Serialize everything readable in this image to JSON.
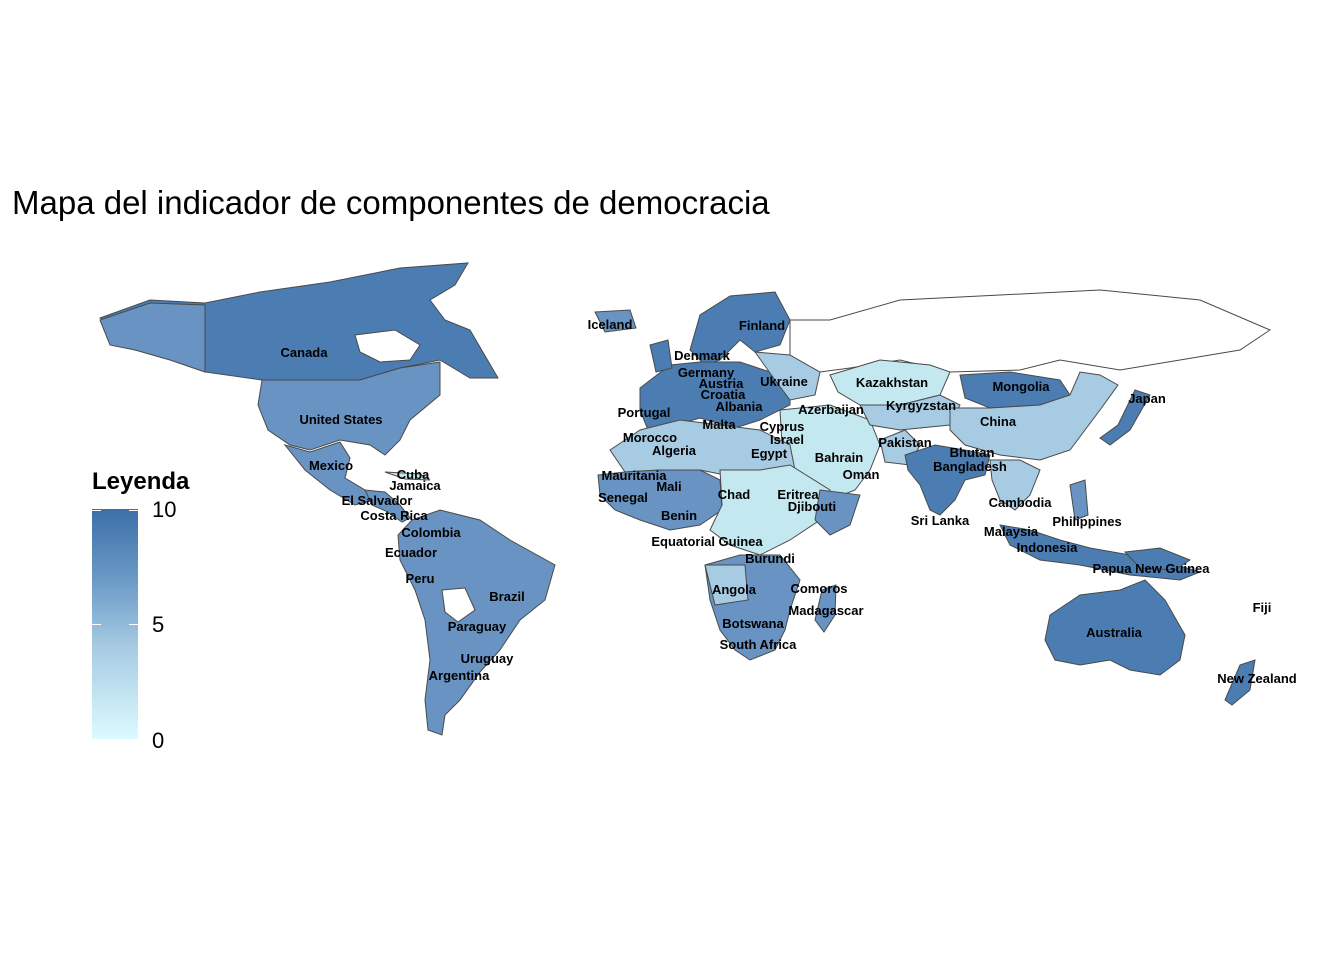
{
  "title": "Mapa del indicador de componentes de democracia",
  "legend": {
    "title": "Leyenda",
    "ticks": [
      "10",
      "5",
      "0"
    ],
    "scale": {
      "min": 0,
      "max": 10,
      "low_color": "#dcfaff",
      "high_color": "#3b6fa6"
    }
  },
  "countries": [
    {
      "name": "Canada",
      "value": 9
    },
    {
      "name": "United States",
      "value": 8
    },
    {
      "name": "Mexico",
      "value": 7
    },
    {
      "name": "Cuba",
      "value": 1
    },
    {
      "name": "Jamaica",
      "value": 8
    },
    {
      "name": "El Salvador",
      "value": 6
    },
    {
      "name": "Costa Rica",
      "value": 9
    },
    {
      "name": "Colombia",
      "value": 7
    },
    {
      "name": "Ecuador",
      "value": 7
    },
    {
      "name": "Peru",
      "value": 7
    },
    {
      "name": "Brazil",
      "value": 7
    },
    {
      "name": "Paraguay",
      "value": 7
    },
    {
      "name": "Uruguay",
      "value": 9
    },
    {
      "name": "Argentina",
      "value": 8
    },
    {
      "name": "Iceland",
      "value": 9
    },
    {
      "name": "Finland",
      "value": 9
    },
    {
      "name": "Denmark",
      "value": 9
    },
    {
      "name": "Germany",
      "value": 9
    },
    {
      "name": "Austria",
      "value": 9
    },
    {
      "name": "Croatia",
      "value": 8
    },
    {
      "name": "Albania",
      "value": 7
    },
    {
      "name": "Ukraine",
      "value": 5
    },
    {
      "name": "Portugal",
      "value": 9
    },
    {
      "name": "Malta",
      "value": 9
    },
    {
      "name": "Azerbaijan",
      "value": 2
    },
    {
      "name": "Cyprus",
      "value": 9
    },
    {
      "name": "Israel",
      "value": 8
    },
    {
      "name": "Morocco",
      "value": 4
    },
    {
      "name": "Algeria",
      "value": 4
    },
    {
      "name": "Egypt",
      "value": 2
    },
    {
      "name": "Bahrain",
      "value": 2
    },
    {
      "name": "Oman",
      "value": 3
    },
    {
      "name": "Mauritania",
      "value": 5
    },
    {
      "name": "Mali",
      "value": 6
    },
    {
      "name": "Senegal",
      "value": 7
    },
    {
      "name": "Chad",
      "value": 2
    },
    {
      "name": "Eritrea",
      "value": 1
    },
    {
      "name": "Djibouti",
      "value": 3
    },
    {
      "name": "Benin",
      "value": 7
    },
    {
      "name": "Equatorial Guinea",
      "value": 2
    },
    {
      "name": "Burundi",
      "value": 3
    },
    {
      "name": "Angola",
      "value": 4
    },
    {
      "name": "Comoros",
      "value": 5
    },
    {
      "name": "Madagascar",
      "value": 6
    },
    {
      "name": "Botswana",
      "value": 8
    },
    {
      "name": "South Africa",
      "value": 8
    },
    {
      "name": "Kazakhstan",
      "value": 3
    },
    {
      "name": "Kyrgyzstan",
      "value": 5
    },
    {
      "name": "Mongolia",
      "value": 8
    },
    {
      "name": "China",
      "value": 4
    },
    {
      "name": "Japan",
      "value": 9
    },
    {
      "name": "Pakistan",
      "value": 5
    },
    {
      "name": "Bhutan",
      "value": 7
    },
    {
      "name": "Bangladesh",
      "value": 5
    },
    {
      "name": "Sri Lanka",
      "value": 7
    },
    {
      "name": "Cambodia",
      "value": 3
    },
    {
      "name": "Malaysia",
      "value": 7
    },
    {
      "name": "Philippines",
      "value": 6
    },
    {
      "name": "Indonesia",
      "value": 7
    },
    {
      "name": "Papua New Guinea",
      "value": 7
    },
    {
      "name": "Australia",
      "value": 9
    },
    {
      "name": "Fiji",
      "value": 6
    },
    {
      "name": "New Zealand",
      "value": 9
    }
  ]
}
